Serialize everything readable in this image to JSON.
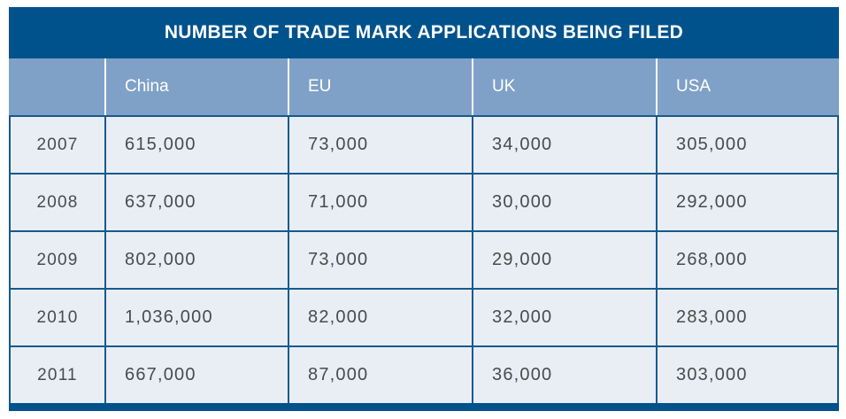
{
  "colors": {
    "title_bar": "#00528C",
    "header_bg": "#7FA1C7",
    "cell_bg": "#E9EEF5",
    "border": "#155A8E",
    "header_text": "#FFFFFF",
    "cell_text": "#4A4A4A",
    "page_bg": "#FFFFFF"
  },
  "chart_data": {
    "type": "table",
    "title": "NUMBER OF TRADE MARK APPLICATIONS BEING FILED",
    "columns": [
      "",
      "China",
      "EU",
      "UK",
      "USA"
    ],
    "rows": [
      {
        "year": "2007",
        "values": [
          "615,000",
          "73,000",
          "34,000",
          "305,000"
        ]
      },
      {
        "year": "2008",
        "values": [
          "637,000",
          "71,000",
          "30,000",
          "292,000"
        ]
      },
      {
        "year": "2009",
        "values": [
          "802,000",
          "73,000",
          "29,000",
          "268,000"
        ]
      },
      {
        "year": "2010",
        "values": [
          "1,036,000",
          "82,000",
          "32,000",
          "283,000"
        ]
      },
      {
        "year": "2011",
        "values": [
          "667,000",
          "87,000",
          "36,000",
          "303,000"
        ]
      }
    ],
    "legend": "none",
    "grid": "on"
  }
}
